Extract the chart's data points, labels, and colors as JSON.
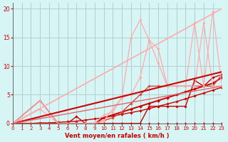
{
  "background_color": "#d8f5f5",
  "grid_color": "#b0d0d0",
  "line_color_dark": "#cc0000",
  "xlabel": "Vent moyen/en rafales ( km/h )",
  "ylabel_ticks": [
    0,
    5,
    10,
    15,
    20
  ],
  "xlim": [
    0,
    23
  ],
  "ylim": [
    0,
    21
  ],
  "xlabel_ticks": [
    0,
    1,
    2,
    3,
    4,
    5,
    6,
    7,
    8,
    9,
    10,
    11,
    12,
    13,
    14,
    15,
    16,
    17,
    18,
    19,
    20,
    21,
    22,
    23
  ],
  "series": [
    {
      "x": [
        0,
        1,
        2,
        3,
        4,
        5,
        6,
        7,
        8,
        9,
        10,
        11,
        12,
        13,
        14,
        15,
        16,
        17,
        18,
        19,
        20,
        21,
        22,
        23
      ],
      "y": [
        0,
        0,
        0,
        0,
        0,
        0,
        0,
        0,
        0,
        0,
        0,
        0,
        0,
        0,
        0,
        0,
        0,
        0,
        0,
        0,
        0,
        0,
        0,
        0
      ],
      "color": "#cc0000",
      "lw": 0.8,
      "marker": "D",
      "ms": 1.8,
      "alpha": 1.0
    },
    {
      "x": [
        0,
        1,
        2,
        3,
        4,
        5,
        6,
        7,
        8,
        9,
        10,
        11,
        12,
        13,
        14,
        15,
        16,
        17,
        18,
        19,
        20,
        21,
        22,
        23
      ],
      "y": [
        0,
        0,
        0,
        0.1,
        0.1,
        0.2,
        0.3,
        0.4,
        0.6,
        0.8,
        1.0,
        1.3,
        1.6,
        1.9,
        2.2,
        2.6,
        3.0,
        3.4,
        3.8,
        4.3,
        4.8,
        5.3,
        5.8,
        6.3
      ],
      "color": "#cc0000",
      "lw": 1.0,
      "marker": "D",
      "ms": 1.8,
      "alpha": 1.0
    },
    {
      "x": [
        0,
        3,
        5,
        6,
        7,
        8,
        9,
        10,
        11,
        12,
        13,
        14,
        15,
        16,
        17,
        18,
        19,
        20,
        21,
        22,
        23
      ],
      "y": [
        0,
        4,
        0,
        0,
        1.2,
        0,
        0,
        0,
        0,
        0,
        0,
        0,
        3.0,
        3.0,
        3.0,
        3.0,
        3.0,
        7.5,
        6.5,
        8.0,
        8.5
      ],
      "color": "#cc0000",
      "lw": 1.0,
      "marker": "D",
      "ms": 1.8,
      "alpha": 1.0
    },
    {
      "x": [
        0,
        2,
        3,
        4,
        5,
        6,
        7,
        8,
        9,
        10,
        11,
        12,
        13,
        14,
        15,
        16,
        17,
        18,
        19,
        20,
        21,
        22,
        23
      ],
      "y": [
        0,
        0,
        0,
        0,
        0,
        0,
        0,
        0,
        0,
        1.0,
        1.5,
        2.0,
        2.5,
        3.0,
        3.5,
        4.0,
        4.5,
        5.0,
        5.5,
        6.0,
        6.5,
        7.0,
        8.0
      ],
      "color": "#cc0000",
      "lw": 1.4,
      "marker": "D",
      "ms": 2.0,
      "alpha": 1.0
    },
    {
      "x": [
        0,
        1,
        2,
        3,
        4,
        5,
        6,
        7,
        8,
        9,
        10,
        11,
        12,
        13,
        14,
        15,
        16,
        17,
        18,
        19,
        20,
        21,
        22,
        23
      ],
      "y": [
        0,
        0,
        0,
        0,
        0,
        0,
        0,
        0,
        0,
        0,
        0.5,
        1.0,
        2.0,
        3.5,
        5.0,
        6.5,
        6.5,
        6.5,
        6.5,
        6.5,
        6.5,
        6.5,
        6.5,
        8.5
      ],
      "color": "#dd4444",
      "lw": 1.0,
      "marker": "D",
      "ms": 1.8,
      "alpha": 1.0
    },
    {
      "x": [
        0,
        3,
        5,
        6,
        7,
        8,
        9,
        10,
        11,
        12,
        13,
        14,
        15,
        16,
        17,
        18,
        19,
        20,
        21,
        22,
        23
      ],
      "y": [
        0,
        4,
        0,
        0,
        0,
        0,
        0,
        1.5,
        2.0,
        4.5,
        5.0,
        8.0,
        14.5,
        10.5,
        6.5,
        6.5,
        6.5,
        17.5,
        6.5,
        19.5,
        6.5
      ],
      "color": "#ffaaaa",
      "lw": 0.9,
      "marker": "D",
      "ms": 1.8,
      "alpha": 1.0
    },
    {
      "x": [
        0,
        3,
        5,
        6,
        7,
        8,
        9,
        10,
        11,
        12,
        13,
        14,
        15,
        16,
        17,
        18,
        19,
        20,
        21,
        22,
        23
      ],
      "y": [
        0,
        2.5,
        0,
        0,
        0,
        0,
        0,
        0.5,
        2.5,
        4.5,
        15.0,
        18.0,
        14.5,
        13.0,
        6.5,
        6.5,
        6.5,
        6.5,
        17.5,
        6.5,
        6.5
      ],
      "color": "#ffaaaa",
      "lw": 0.9,
      "marker": "D",
      "ms": 1.8,
      "alpha": 1.0
    },
    {
      "x": [
        0,
        23
      ],
      "y": [
        0,
        9.0
      ],
      "color": "#cc0000",
      "lw": 1.5,
      "marker": "",
      "ms": 0,
      "alpha": 1.0
    },
    {
      "x": [
        0,
        23
      ],
      "y": [
        0,
        20.0
      ],
      "color": "#ffaaaa",
      "lw": 1.2,
      "marker": "",
      "ms": 0,
      "alpha": 1.0
    },
    {
      "x": [
        0,
        23
      ],
      "y": [
        0,
        6.5
      ],
      "color": "#dd6666",
      "lw": 1.0,
      "marker": "",
      "ms": 0,
      "alpha": 1.0
    }
  ]
}
